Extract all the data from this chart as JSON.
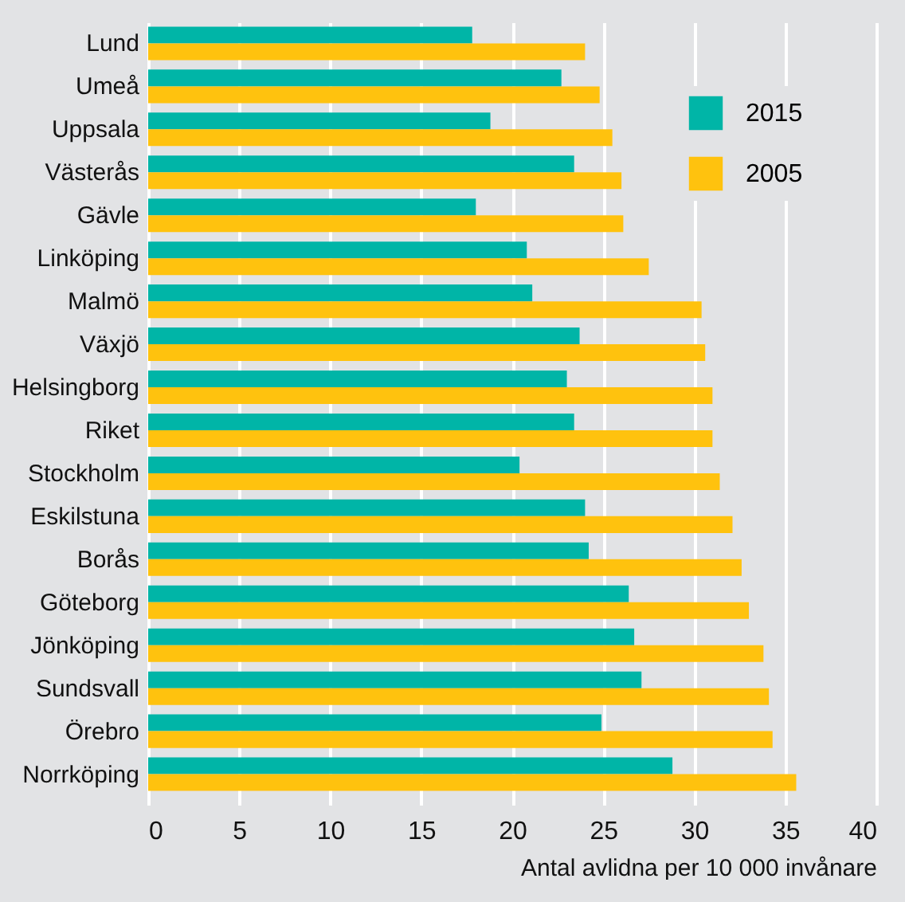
{
  "chart_data": {
    "type": "bar",
    "orientation": "horizontal",
    "xlabel": "Antal avlidna per 10 000 invånare",
    "categories": [
      "Lund",
      "Umeå",
      "Uppsala",
      "Västerås",
      "Gävle",
      "Linköping",
      "Malmö",
      "Växjö",
      "Helsingborg",
      "Riket",
      "Stockholm",
      "Eskilstuna",
      "Borås",
      "Göteborg",
      "Jönköping",
      "Sundsvall",
      "Örebro",
      "Norrköping"
    ],
    "series": [
      {
        "name": "2015",
        "color": "#00b5a7",
        "values": [
          17.8,
          22.7,
          18.8,
          23.4,
          18.0,
          20.8,
          21.1,
          23.7,
          23.0,
          23.4,
          20.4,
          24.0,
          24.2,
          26.4,
          26.7,
          27.1,
          24.9,
          28.8
        ]
      },
      {
        "name": "2005",
        "color": "#ffc20e",
        "values": [
          24.0,
          24.8,
          25.5,
          26.0,
          26.1,
          27.5,
          30.4,
          30.6,
          31.0,
          31.0,
          31.4,
          32.1,
          32.6,
          33.0,
          33.8,
          34.1,
          34.3,
          35.6
        ]
      }
    ],
    "xlim": [
      0,
      40
    ],
    "xticks": [
      0,
      5,
      10,
      15,
      20,
      25,
      30,
      35,
      40
    ],
    "grid": "x",
    "legend": "top right"
  }
}
